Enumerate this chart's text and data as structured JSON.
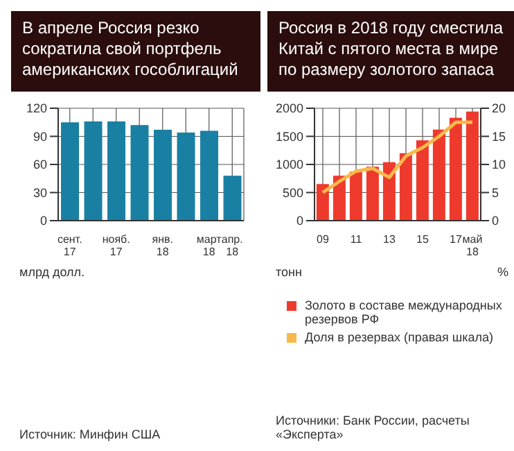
{
  "chart_data": [
    {
      "type": "bar",
      "title": "В апреле Россия резко сократила свой портфель американских гособлигаций",
      "ylabel": "млрд долл.",
      "categories": [
        "сент.\n17",
        null,
        "нояб.\n17",
        null,
        "янв.\n18",
        null,
        "март\n18",
        "апр.\n18"
      ],
      "values": [
        105,
        106,
        106,
        102,
        97,
        94,
        96,
        48
      ],
      "color": "#1a80a3",
      "ylim": [
        0,
        120
      ],
      "yticks": [
        0,
        30,
        60,
        90,
        120
      ],
      "grid": true,
      "legend": false,
      "annotations": [
        "Источник: Минфин США"
      ]
    },
    {
      "type": "bar",
      "title": "Россия в 2018 году сместила Китай с пятого места в мире по размеру золотого запаса",
      "ylabel": "тонн",
      "y2label": "%",
      "categories": [
        "09",
        null,
        "11",
        null,
        "13",
        null,
        "15",
        null,
        "17",
        "май\n18"
      ],
      "series": [
        {
          "name": "Золото в составе международных резервов РФ",
          "type": "bar",
          "color": "#ee3a2c",
          "values": [
            650,
            800,
            870,
            960,
            1040,
            1200,
            1430,
            1620,
            1830,
            1940
          ]
        },
        {
          "name": "Доля в резервах (правая шкала)",
          "type": "line",
          "axis": "y2",
          "color": "#f7b84b",
          "values": [
            5,
            7,
            8.8,
            9.3,
            7.7,
            11.5,
            13,
            15,
            17.5,
            17.5
          ]
        }
      ],
      "ylim": [
        0,
        2000
      ],
      "yticks": [
        0,
        500,
        1000,
        1500,
        2000
      ],
      "y2lim": [
        0,
        20
      ],
      "y2ticks": [
        0,
        5,
        10,
        15,
        20
      ],
      "grid": true,
      "legend": "bottom",
      "marker": "none",
      "annotations": [
        "Источники: Банк России, расчеты «Эксперта»"
      ]
    }
  ]
}
